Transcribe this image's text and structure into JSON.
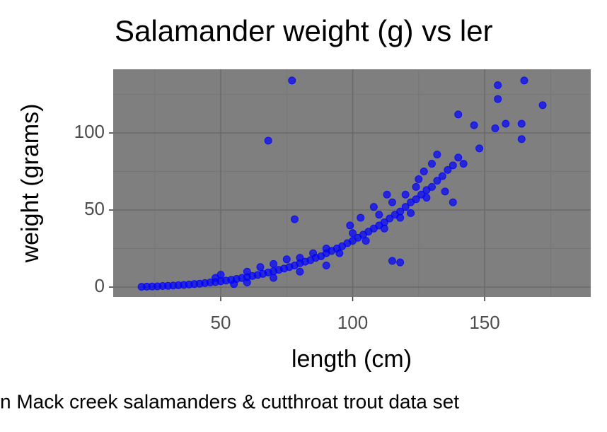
{
  "chart_data": {
    "type": "scatter",
    "title": "Salamander weight (g) vs ler",
    "xlabel": "length (cm)",
    "ylabel": "weight (grams)",
    "caption": "n Mack creek salamanders & cutthroat trout data set",
    "color": "#0000ff",
    "xlim": [
      9.25,
      190.2
    ],
    "ylim": [
      -6.4,
      141.3
    ],
    "xticks": [
      50,
      100,
      150
    ],
    "yticks": [
      0,
      50,
      100
    ],
    "xminor": [
      25,
      75,
      125,
      175
    ],
    "yminor": [
      25,
      75,
      125
    ],
    "grid": true,
    "x": [
      20,
      22,
      24,
      26,
      28,
      30,
      32,
      34,
      36,
      38,
      40,
      42,
      44,
      46,
      48,
      50,
      52,
      54,
      56,
      58,
      60,
      62,
      64,
      66,
      68,
      70,
      72,
      74,
      76,
      78,
      80,
      82,
      84,
      86,
      88,
      90,
      92,
      94,
      96,
      98,
      100,
      102,
      104,
      106,
      108,
      110,
      112,
      114,
      116,
      118,
      120,
      122,
      124,
      126,
      128,
      130,
      132,
      134,
      136,
      138,
      50,
      48,
      55,
      60,
      65,
      70,
      75,
      80,
      85,
      90,
      95,
      100,
      105,
      110,
      112,
      115,
      118,
      120,
      122,
      125,
      128,
      130,
      132,
      127,
      135,
      138,
      103,
      99,
      60,
      70,
      80,
      90,
      108,
      113,
      124,
      77,
      68,
      78,
      115,
      118,
      155,
      155,
      165,
      172,
      164,
      164,
      158,
      154,
      140,
      146,
      148,
      140,
      142
    ],
    "values": [
      0.2,
      0.3,
      0.4,
      0.5,
      0.7,
      0.8,
      1,
      1.2,
      1.4,
      1.7,
      2,
      2.2,
      2.6,
      3,
      3.3,
      3.8,
      4.2,
      4.7,
      5.3,
      5.9,
      6.5,
      7.2,
      7.8,
      8.6,
      9.5,
      10.3,
      11.2,
      12,
      13,
      14,
      15.5,
      16.5,
      17.5,
      19,
      20,
      22,
      23.5,
      25,
      26.5,
      28.5,
      30,
      32,
      34,
      36,
      38,
      40,
      42,
      44.5,
      47,
      49,
      52,
      55,
      57,
      60,
      63,
      65,
      69,
      72,
      76,
      79,
      8,
      6,
      2,
      10,
      13,
      15,
      18,
      19,
      22,
      25,
      22,
      35,
      30,
      47,
      38,
      55,
      45,
      60,
      48,
      70,
      58,
      80,
      86,
      75,
      62,
      55,
      45,
      40,
      3,
      6,
      10,
      14,
      52,
      60,
      65,
      134,
      95,
      44,
      17,
      16,
      131,
      122,
      134,
      118,
      106,
      96,
      106,
      103,
      112,
      105,
      90,
      84,
      80
    ]
  }
}
